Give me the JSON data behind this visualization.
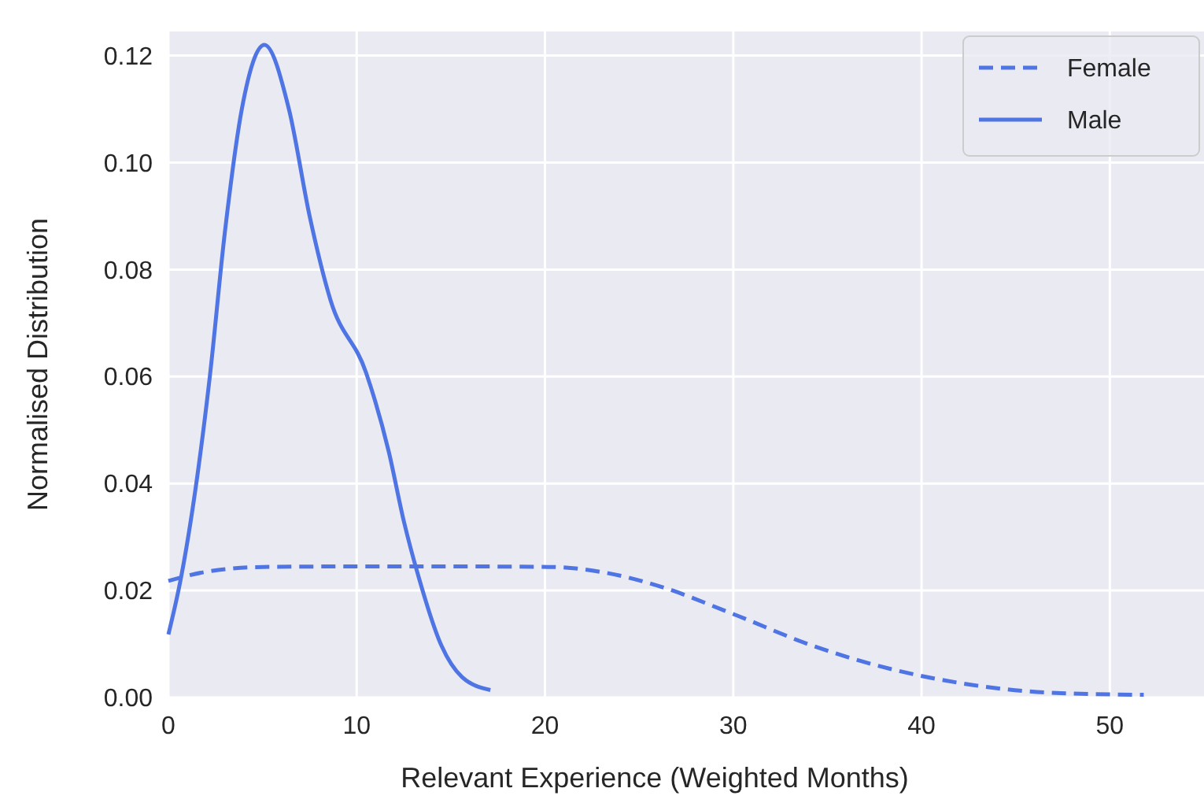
{
  "chart_data": {
    "type": "line",
    "xlabel": "Relevant Experience (Weighted Months)",
    "ylabel": "Normalised Distribution",
    "xlim": [
      0,
      55
    ],
    "ylim": [
      0,
      0.1245
    ],
    "xticks": [
      0,
      10,
      20,
      30,
      40,
      50
    ],
    "yticks": [
      {
        "value": 0,
        "label": "0.00"
      },
      {
        "value": 0.02,
        "label": "0.02"
      },
      {
        "value": 0.04,
        "label": "0.04"
      },
      {
        "value": 0.06,
        "label": "0.06"
      },
      {
        "value": 0.08,
        "label": "0.08"
      },
      {
        "value": 0.1,
        "label": "0.10"
      },
      {
        "value": 0.12,
        "label": "0.12"
      }
    ],
    "grid": true,
    "legend": "top right",
    "series": [
      {
        "name": "Female",
        "color": "#4f74e3",
        "line_style": "dashed",
        "x": [
          0,
          2,
          5,
          10,
          15,
          20.3,
          23.1,
          25.9,
          30,
          34.2,
          38.4,
          42.6,
          46.8,
          51.8
        ],
        "values": [
          0.0218,
          0.0235,
          0.0244,
          0.0245,
          0.0245,
          0.0244,
          0.0234,
          0.021,
          0.0156,
          0.0097,
          0.0053,
          0.0024,
          0.0009,
          0.0005
        ]
      },
      {
        "name": "Male",
        "color": "#4f74e3",
        "line_style": "solid",
        "x": [
          0,
          0.67,
          2.2,
          3,
          3.9,
          5.1,
          6.4,
          7.5,
          8.6,
          10.5,
          11.7,
          12.5,
          13.3,
          14.5,
          15.6,
          17.1
        ],
        "values": [
          0.0118,
          0.0224,
          0.06,
          0.087,
          0.11,
          0.122,
          0.11,
          0.09,
          0.0744,
          0.0607,
          0.046,
          0.033,
          0.0224,
          0.0097,
          0.0038,
          0.0014
        ]
      }
    ]
  }
}
